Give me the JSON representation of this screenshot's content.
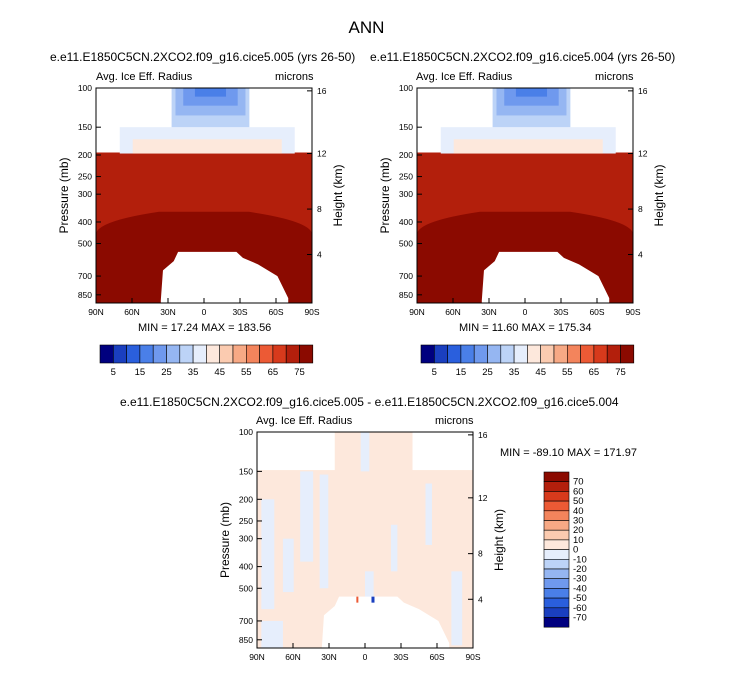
{
  "page": {
    "title": "ANN"
  },
  "panels": [
    {
      "title": "e.e11.E1850C5CN.2XCO2.f09_g16.cice5.005 (yrs 26-50)",
      "left_string": "Avg. Ice Eff. Radius",
      "right_string": "microns",
      "stats": "MIN = 17.24  MAX = 183.56"
    },
    {
      "title": "e.e11.E1850C5CN.2XCO2.f09_g16.cice5.004 (yrs 26-50)",
      "left_string": "Avg. Ice Eff. Radius",
      "right_string": "microns",
      "stats": "MIN = 11.60  MAX = 175.34"
    },
    {
      "title": "e.e11.E1850C5CN.2XCO2.f09_g16.cice5.005 - e.e11.E1850C5CN.2XCO2.f09_g16.cice5.004",
      "left_string": "Avg. Ice Eff. Radius",
      "right_string": "microns",
      "stats": "MIN = -89.10  MAX = 171.97"
    }
  ],
  "axes": {
    "ylabel": "Pressure (mb)",
    "ylabel_right": "Height (km)",
    "pressure_ticks": [
      "100",
      "150",
      "200",
      "250",
      "300",
      "400",
      "500",
      "700",
      "850"
    ],
    "height_ticks": [
      "16",
      "12",
      "8",
      "4"
    ],
    "lat_ticks": [
      "90N",
      "60N",
      "30N",
      "0",
      "30S",
      "60S",
      "90S"
    ]
  },
  "colors": {
    "abs_colors": [
      "#00007f",
      "#1a3fbf",
      "#2a5fdd",
      "#4a7fe8",
      "#6f99ee",
      "#95b6f2",
      "#bcd3f7",
      "#e6eefc",
      "#fde8dc",
      "#fbcbb0",
      "#f7a985",
      "#f3845c",
      "#ec5a35",
      "#d73a1c",
      "#b31f0c",
      "#8b0a00"
    ],
    "diff_colors": [
      "#8b0a00",
      "#b31f0c",
      "#d73a1c",
      "#ec5a35",
      "#f3845c",
      "#f7a985",
      "#fbcbb0",
      "#fde8dc",
      "#e6eefc",
      "#bcd3f7",
      "#95b6f2",
      "#6f99ee",
      "#4a7fe8",
      "#2a5fdd",
      "#1a3fbf",
      "#00007f"
    ]
  },
  "chart_data": [
    {
      "type": "heatmap",
      "title": "e.e11.E1850C5CN.2XCO2.f09_g16.cice5.005 (yrs 26-50)",
      "variable": "Avg. Ice Eff. Radius",
      "units": "microns",
      "xlabel": "",
      "ylabel": "Pressure (mb)",
      "ylabel_right": "Height (km)",
      "x_ticks": [
        "90N",
        "60N",
        "30N",
        "0",
        "30S",
        "60S",
        "90S"
      ],
      "y_ticks": [
        100,
        150,
        200,
        250,
        300,
        400,
        500,
        700,
        850
      ],
      "y_scale": "log",
      "min": 17.24,
      "max": 183.56,
      "colorbar_labels": [
        "5",
        "15",
        "25",
        "35",
        "45",
        "55",
        "65",
        "75"
      ],
      "colorbar_levels": [
        5,
        10,
        15,
        20,
        25,
        30,
        35,
        40,
        45,
        50,
        55,
        60,
        65,
        70,
        75
      ]
    },
    {
      "type": "heatmap",
      "title": "e.e11.E1850C5CN.2XCO2.f09_g16.cice5.004 (yrs 26-50)",
      "variable": "Avg. Ice Eff. Radius",
      "units": "microns",
      "xlabel": "",
      "ylabel": "Pressure (mb)",
      "ylabel_right": "Height (km)",
      "x_ticks": [
        "90N",
        "60N",
        "30N",
        "0",
        "30S",
        "60S",
        "90S"
      ],
      "y_ticks": [
        100,
        150,
        200,
        250,
        300,
        400,
        500,
        700,
        850
      ],
      "y_scale": "log",
      "min": 11.6,
      "max": 175.34,
      "colorbar_labels": [
        "5",
        "15",
        "25",
        "35",
        "45",
        "55",
        "65",
        "75"
      ],
      "colorbar_levels": [
        5,
        10,
        15,
        20,
        25,
        30,
        35,
        40,
        45,
        50,
        55,
        60,
        65,
        70,
        75
      ]
    },
    {
      "type": "heatmap",
      "title": "e.e11.E1850C5CN.2XCO2.f09_g16.cice5.005 - e.e11.E1850C5CN.2XCO2.f09_g16.cice5.004",
      "variable": "Avg. Ice Eff. Radius",
      "units": "microns",
      "xlabel": "",
      "ylabel": "Pressure (mb)",
      "ylabel_right": "Height (km)",
      "x_ticks": [
        "90N",
        "60N",
        "30N",
        "0",
        "30S",
        "60S",
        "90S"
      ],
      "y_ticks": [
        100,
        150,
        200,
        250,
        300,
        400,
        500,
        700,
        850
      ],
      "y_scale": "log",
      "min": -89.1,
      "max": 171.97,
      "colorbar_labels": [
        "70",
        "60",
        "50",
        "40",
        "30",
        "20",
        "10",
        "0",
        "-10",
        "-20",
        "-30",
        "-40",
        "-50",
        "-60",
        "-70"
      ],
      "colorbar_levels": [
        -70,
        -60,
        -50,
        -40,
        -30,
        -20,
        -10,
        0,
        10,
        20,
        30,
        40,
        50,
        60,
        70
      ]
    }
  ]
}
